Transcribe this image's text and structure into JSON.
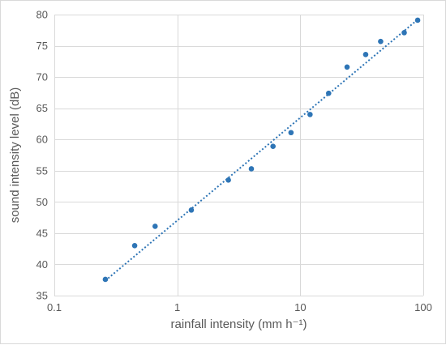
{
  "chart_data": {
    "type": "scatter",
    "title": "",
    "xlabel": "rainfall intensity (mm h⁻¹)",
    "ylabel": "sound intensity level (dB)",
    "xscale": "log",
    "xlim": [
      0.1,
      100
    ],
    "ylim": [
      35,
      80
    ],
    "xticks": [
      0.1,
      1,
      10,
      100
    ],
    "xtick_labels": [
      "0.1",
      "1",
      "10",
      "100"
    ],
    "yticks": [
      35,
      40,
      45,
      50,
      55,
      60,
      65,
      70,
      75,
      80
    ],
    "ytick_labels": [
      "35",
      "40",
      "45",
      "50",
      "55",
      "60",
      "65",
      "70",
      "75",
      "80"
    ],
    "grid": true,
    "legend": "none",
    "colors": {
      "points": "#2e75b6",
      "trendline": "#2e75b6",
      "grid": "#d9d9d9",
      "text": "#595959"
    },
    "series": [
      {
        "points": [
          [
            0.26,
            37.6
          ],
          [
            0.45,
            43.0
          ],
          [
            0.66,
            46.1
          ],
          [
            1.3,
            48.7
          ],
          [
            2.6,
            53.5
          ],
          [
            4.0,
            55.3
          ],
          [
            6.0,
            58.9
          ],
          [
            8.4,
            61.1
          ],
          [
            12.0,
            64.0
          ],
          [
            17.0,
            67.4
          ],
          [
            24.0,
            71.6
          ],
          [
            34.0,
            73.6
          ],
          [
            45.0,
            75.7
          ],
          [
            70.0,
            77.1
          ],
          [
            90.0,
            79.1
          ]
        ]
      }
    ],
    "trendline": {
      "type": "logarithmic",
      "style": "dotted",
      "x_range": [
        0.26,
        90
      ],
      "y_range": [
        37.4,
        79.2
      ]
    }
  }
}
